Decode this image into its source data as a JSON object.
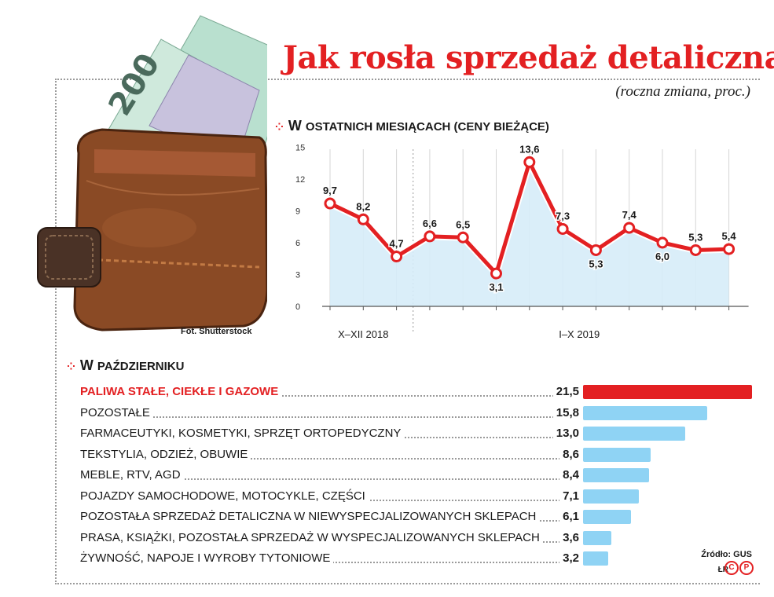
{
  "title": "Jak rosła sprzedaż detaliczna",
  "subtitle": "(roczna zmiana, proc.)",
  "photo_credit": "Fot. Shutterstock",
  "section1": {
    "first": "W",
    "rest": "ostatnich miesiącach (ceny bieżące)"
  },
  "section2": {
    "first": "W",
    "rest": "październiku"
  },
  "source": "Źródło: GUS",
  "author": "ŁR",
  "logo": [
    "C",
    "P"
  ],
  "colors": {
    "accent": "#e32022",
    "bar": "#8fd3f4",
    "area": "#d6ecf8"
  },
  "chart_data": [
    {
      "type": "line",
      "x": [
        "X 2018",
        "XI 2018",
        "XII 2018",
        "I 2019",
        "II 2019",
        "III 2019",
        "IV 2019",
        "V 2019",
        "VI 2019",
        "VII 2019",
        "VIII 2019",
        "IX 2019",
        "X 2019"
      ],
      "values": [
        9.7,
        8.2,
        4.7,
        6.6,
        6.5,
        3.1,
        13.6,
        7.3,
        5.3,
        7.4,
        6.0,
        5.3,
        5.4
      ],
      "value_labels": [
        "9,7",
        "8,2",
        "4,7",
        "6,6",
        "6,5",
        "3,1",
        "13,6",
        "7,3",
        "5,3",
        "7,4",
        "6,0",
        "5,3",
        "5,4"
      ],
      "yticks": [
        "0",
        "3",
        "6",
        "9",
        "12",
        "15"
      ],
      "ylim": [
        0,
        15
      ],
      "group_labels": [
        "X–XII 2018",
        "I–X 2019"
      ],
      "grid": "vertical",
      "fill": "area"
    },
    {
      "type": "bar",
      "orientation": "horizontal",
      "categories": [
        "Paliwa stałe, ciekłe i gazowe",
        "Pozostałe",
        "Farmaceutyki, kosmetyki, sprzęt ortopedyczny",
        "Tekstylia, odzież, obuwie",
        "Meble, RTV, AGD",
        "Pojazdy samochodowe, motocykle, części",
        "Pozostała sprzedaż detaliczna w niewyspecjalizowanych sklepach",
        "Prasa, książki, pozostała sprzedaż w wyspecjalizowanych sklepach",
        "Żywność, napoje i wyroby tytoniowe"
      ],
      "values": [
        21.5,
        15.8,
        13.0,
        8.6,
        8.4,
        7.1,
        6.1,
        3.6,
        3.2
      ],
      "value_labels": [
        "21,5",
        "15,8",
        "13,0",
        "8,6",
        "8,4",
        "7,1",
        "6,1",
        "3,6",
        "3,2"
      ],
      "highlight_index": 0
    }
  ]
}
